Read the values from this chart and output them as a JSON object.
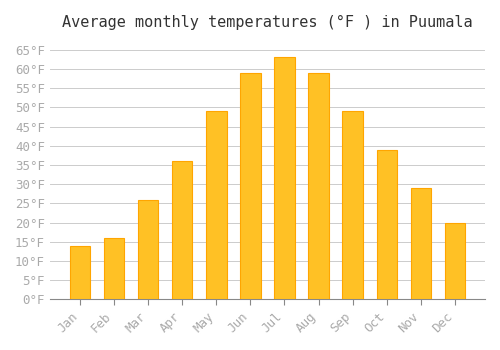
{
  "title": "Average monthly temperatures (°F ) in Puumala",
  "months": [
    "Jan",
    "Feb",
    "Mar",
    "Apr",
    "May",
    "Jun",
    "Jul",
    "Aug",
    "Sep",
    "Oct",
    "Nov",
    "Dec"
  ],
  "values": [
    14,
    16,
    26,
    36,
    49,
    59,
    63,
    59,
    49,
    39,
    29,
    20
  ],
  "bar_color": "#FFC125",
  "bar_edge_color": "#FFA500",
  "background_color": "#ffffff",
  "grid_color": "#cccccc",
  "ylim": [
    0,
    68
  ],
  "yticks": [
    0,
    5,
    10,
    15,
    20,
    25,
    30,
    35,
    40,
    45,
    50,
    55,
    60,
    65
  ],
  "title_fontsize": 11,
  "tick_fontsize": 9,
  "tick_color": "#aaaaaa",
  "font_family": "monospace"
}
